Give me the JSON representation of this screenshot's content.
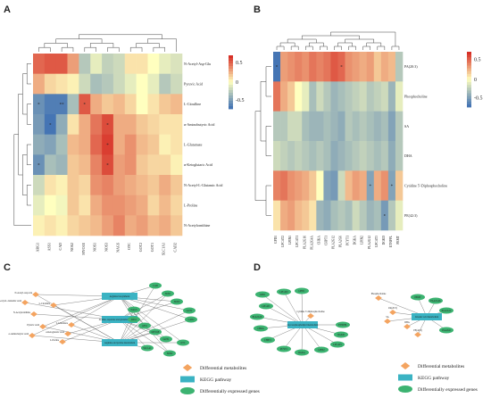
{
  "panels": {
    "A": {
      "letter": "A"
    },
    "B": {
      "letter": "B"
    },
    "C": {
      "letter": "C"
    },
    "D": {
      "letter": "D"
    }
  },
  "heatmapA": {
    "rows": [
      "N-Acetyl-Asp-Glu",
      "Pyruvic Acid",
      "L-Citrulline",
      "α-Aminobutyric Acid",
      "L-Glutamate",
      "α-Ketoglutaric Acid",
      "N-Acetyl-L-Glutamic Acid",
      "L-Proline",
      "N-Acetylornithine"
    ],
    "cols": [
      "ARG1",
      "ASS1",
      "CAD",
      "NOS2",
      "MYO1E",
      "NOS1",
      "NOS3",
      "NAGS",
      "OTC",
      "GOT2",
      "GOT1",
      "SLC1A1",
      "CAD2"
    ],
    "values": [
      [
        0.55,
        0.6,
        0.6,
        0.35,
        -0.3,
        -0.1,
        -0.25,
        -0.2,
        0.1,
        0.1,
        0.0,
        -0.1,
        -0.15
      ],
      [
        0.3,
        0.15,
        0.1,
        0.05,
        -0.2,
        -0.35,
        -0.3,
        -0.2,
        -0.1,
        0.0,
        -0.1,
        -0.3,
        -0.2
      ],
      [
        -0.6,
        -0.7,
        -0.7,
        -0.35,
        0.6,
        0.3,
        0.2,
        0.25,
        0.15,
        0.0,
        0.1,
        0.2,
        0.25
      ],
      [
        -0.55,
        -0.75,
        -0.45,
        0.1,
        0.3,
        0.5,
        0.65,
        0.3,
        0.3,
        0.2,
        0.15,
        0.1,
        0.1
      ],
      [
        -0.45,
        -0.5,
        -0.35,
        0.25,
        0.3,
        0.55,
        0.7,
        0.3,
        0.4,
        0.25,
        0.2,
        0.05,
        0.1
      ],
      [
        -0.6,
        -0.35,
        -0.4,
        0.2,
        0.25,
        0.45,
        0.65,
        0.35,
        0.4,
        0.2,
        0.15,
        0.15,
        0.05
      ],
      [
        -0.2,
        0.1,
        0.05,
        0.2,
        0.15,
        0.4,
        0.45,
        0.35,
        0.3,
        0.25,
        0.2,
        0.3,
        0.2
      ],
      [
        -0.1,
        0.0,
        -0.05,
        0.2,
        0.1,
        0.3,
        0.4,
        0.4,
        0.35,
        0.3,
        0.15,
        0.25,
        0.15
      ],
      [
        0.05,
        0.1,
        0.05,
        0.15,
        0.2,
        0.25,
        0.35,
        0.45,
        0.3,
        0.35,
        0.25,
        0.3,
        0.2
      ]
    ],
    "stars": [
      [
        2,
        0,
        "*"
      ],
      [
        2,
        2,
        "**"
      ],
      [
        2,
        4,
        "*"
      ],
      [
        3,
        1,
        "*"
      ],
      [
        3,
        6,
        "*"
      ],
      [
        4,
        6,
        "*"
      ],
      [
        5,
        0,
        "*"
      ],
      [
        5,
        6,
        "*"
      ]
    ],
    "legend": [
      "0.5",
      "0",
      "-0.5"
    ]
  },
  "heatmapB": {
    "rows": [
      "PA(20:3)",
      "Phosphocholine",
      "SA",
      "DHA",
      "Cytidine 5'-Diphosphocholine",
      "PE(42:3)"
    ],
    "cols": [
      "GPD1",
      "LPCAT2",
      "LPIN1",
      "LPCAT1",
      "PLA2G16",
      "PLA2G4A",
      "CHKA",
      "CHPT1",
      "PLA2G12",
      "PLA2G6",
      "PCYT1",
      "DGKA",
      "LPIN2",
      "PLA2G12",
      "LPCAT3",
      "DGKD",
      "ETNPPL",
      "PEMT"
    ],
    "values": [
      [
        -0.8,
        0.35,
        0.4,
        0.45,
        0.4,
        0.5,
        0.45,
        0.5,
        0.6,
        0.55,
        0.4,
        0.35,
        0.3,
        0.35,
        0.2,
        0.3,
        0.25,
        -0.3
      ],
      [
        0.5,
        0.3,
        0.2,
        0.0,
        -0.1,
        -0.35,
        -0.2,
        -0.3,
        -0.4,
        -0.35,
        -0.3,
        -0.25,
        -0.2,
        -0.3,
        -0.25,
        -0.2,
        -0.4,
        -0.1
      ],
      [
        -0.3,
        -0.3,
        -0.2,
        -0.2,
        -0.35,
        -0.4,
        -0.4,
        -0.35,
        -0.4,
        -0.45,
        -0.3,
        -0.35,
        -0.3,
        -0.35,
        -0.4,
        -0.35,
        -0.5,
        -0.3
      ],
      [
        -0.2,
        -0.25,
        -0.3,
        -0.25,
        -0.3,
        -0.35,
        -0.3,
        -0.35,
        -0.45,
        -0.4,
        -0.35,
        -0.3,
        -0.25,
        -0.3,
        -0.35,
        -0.3,
        -0.45,
        -0.3
      ],
      [
        0.45,
        0.5,
        0.4,
        0.35,
        0.3,
        0.2,
        0.0,
        -0.5,
        -0.55,
        -0.2,
        0.25,
        0.35,
        0.3,
        -0.5,
        0.3,
        0.4,
        -0.5,
        0.2
      ],
      [
        0.1,
        0.3,
        0.35,
        0.25,
        0.2,
        0.1,
        -0.4,
        -0.45,
        -0.35,
        -0.3,
        -0.35,
        -0.2,
        -0.3,
        -0.4,
        -0.35,
        -0.55,
        -0.3,
        -0.1
      ]
    ],
    "stars": [
      [
        0,
        0,
        "*"
      ],
      [
        0,
        9,
        "*"
      ],
      [
        4,
        13,
        "*"
      ],
      [
        4,
        16,
        "*"
      ],
      [
        5,
        15,
        "*"
      ]
    ],
    "legend": [
      "0.5",
      "0",
      "-0.5"
    ]
  },
  "networkC": {
    "pathways": [
      "Arginine biosynthesis",
      "Alanine, aspartate and glutamate metabolism",
      "Arginine and proline metabolism"
    ],
    "metabolites": [
      "N-Acetyl-Asp-Glu",
      "N-Acetyl-L-Glutamic Acid",
      "L-Citrulline",
      "N-Acetylornithine",
      "L-Glutamate",
      "α-Ketoglutaric Acid",
      "Pyruvic Acid",
      "L-Proline",
      "α-Aminobutyric Acid"
    ],
    "genes": [
      "CAD",
      "NOS1",
      "NOS3",
      "GOT2",
      "NAGS",
      "ARG1",
      "ASS1",
      "MYO1E",
      "GOT1",
      "OTC",
      "SLC1A1",
      "NOS2",
      "CAD2"
    ]
  },
  "networkD": {
    "pathways": [
      "Glycerophospholipid metabolism",
      "Linoleic acid metabolism"
    ],
    "metabolites": [
      "Cytidine 5'-Diphosphocholine",
      "Phosphocholine",
      "PA(20:3)",
      "SA",
      "DHA",
      "PE(42:3)"
    ],
    "genes": [
      "GPD1",
      "LPCAT2",
      "LPIN1",
      "LPCAT1",
      "PLA2G16",
      "CHKA",
      "CHPT1",
      "PCYT1",
      "DGKA",
      "LPIN2",
      "LPCAT3",
      "DGKD",
      "ETNPPL",
      "PEMT",
      "PLA2G4A",
      "PLA2G12",
      "PLA2G6"
    ]
  },
  "legend": {
    "metabolites": "Differential metabolites",
    "pathway": "KEGG pathway",
    "genes": "Differentially expressed genes"
  },
  "colors": {
    "high": "#d73027",
    "mid": "#ffffbf",
    "low": "#4575b4",
    "diamond": "#f4a460",
    "rect": "#3bb3c3",
    "ellipse": "#3cb371"
  }
}
